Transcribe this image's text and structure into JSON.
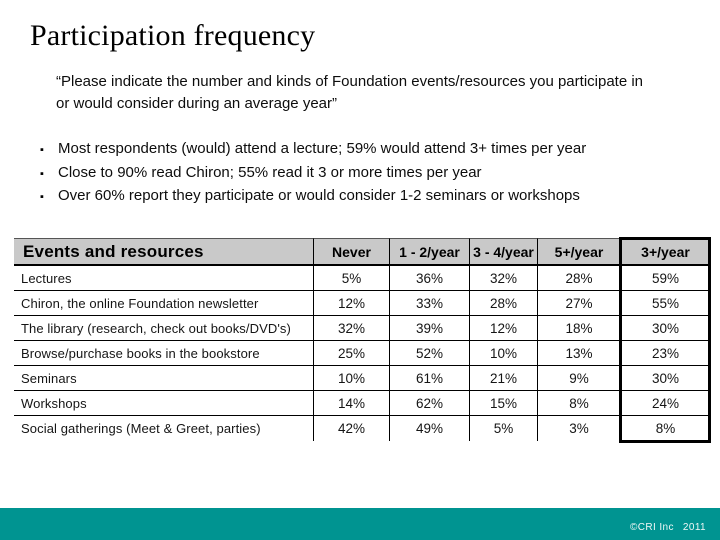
{
  "slide": {
    "title": "Participation frequency",
    "quote": "“Please indicate the number and kinds of Foundation events/resources you participate in or would consider during an average year”",
    "bullet_glyph": "▪",
    "bullets": [
      "Most respondents (would) attend a lecture; 59% would attend 3+ times per year",
      "Close to 90% read Chiron; 55% read it 3 or more times per year",
      "Over 60% report they participate or would consider 1-2 seminars or workshops"
    ]
  },
  "chart_data": {
    "type": "table",
    "title": "Participation frequency",
    "columns": [
      "Events and resources",
      "Never",
      "1 - 2/year",
      "3 - 4/year",
      "5+/year",
      "3+/year"
    ],
    "rows": [
      {
        "label": "Lectures",
        "values": [
          "5%",
          "36%",
          "32%",
          "28%",
          "59%"
        ]
      },
      {
        "label": "Chiron, the online Foundation newsletter",
        "values": [
          "12%",
          "33%",
          "28%",
          "27%",
          "55%"
        ]
      },
      {
        "label": "The library (research, check out books/DVD's)",
        "values": [
          "32%",
          "39%",
          "12%",
          "18%",
          "30%"
        ]
      },
      {
        "label": "Browse/purchase books in the bookstore",
        "values": [
          "25%",
          "52%",
          "10%",
          "13%",
          "23%"
        ]
      },
      {
        "label": "Seminars",
        "values": [
          "10%",
          "61%",
          "21%",
          "9%",
          "30%"
        ]
      },
      {
        "label": "Workshops",
        "values": [
          "14%",
          "62%",
          "15%",
          "8%",
          "24%"
        ]
      },
      {
        "label": "Social gatherings (Meet & Greet, parties)",
        "values": [
          "42%",
          "49%",
          "5%",
          "3%",
          "8%"
        ]
      }
    ],
    "highlight_column": "3+/year",
    "layout_hints": {
      "header_background": "#c9c9c9",
      "highlight_border": "thick black box around 3+/year column",
      "grid": "horizontal row rules + vertical column rules"
    }
  },
  "footer": {
    "copyright": "©CRI Inc",
    "year": "2011"
  },
  "colors": {
    "background": "#ffffff",
    "footer_bar": "#009491",
    "table_header_bg": "#c9c9c9",
    "border": "#000000",
    "text": "#111111"
  }
}
